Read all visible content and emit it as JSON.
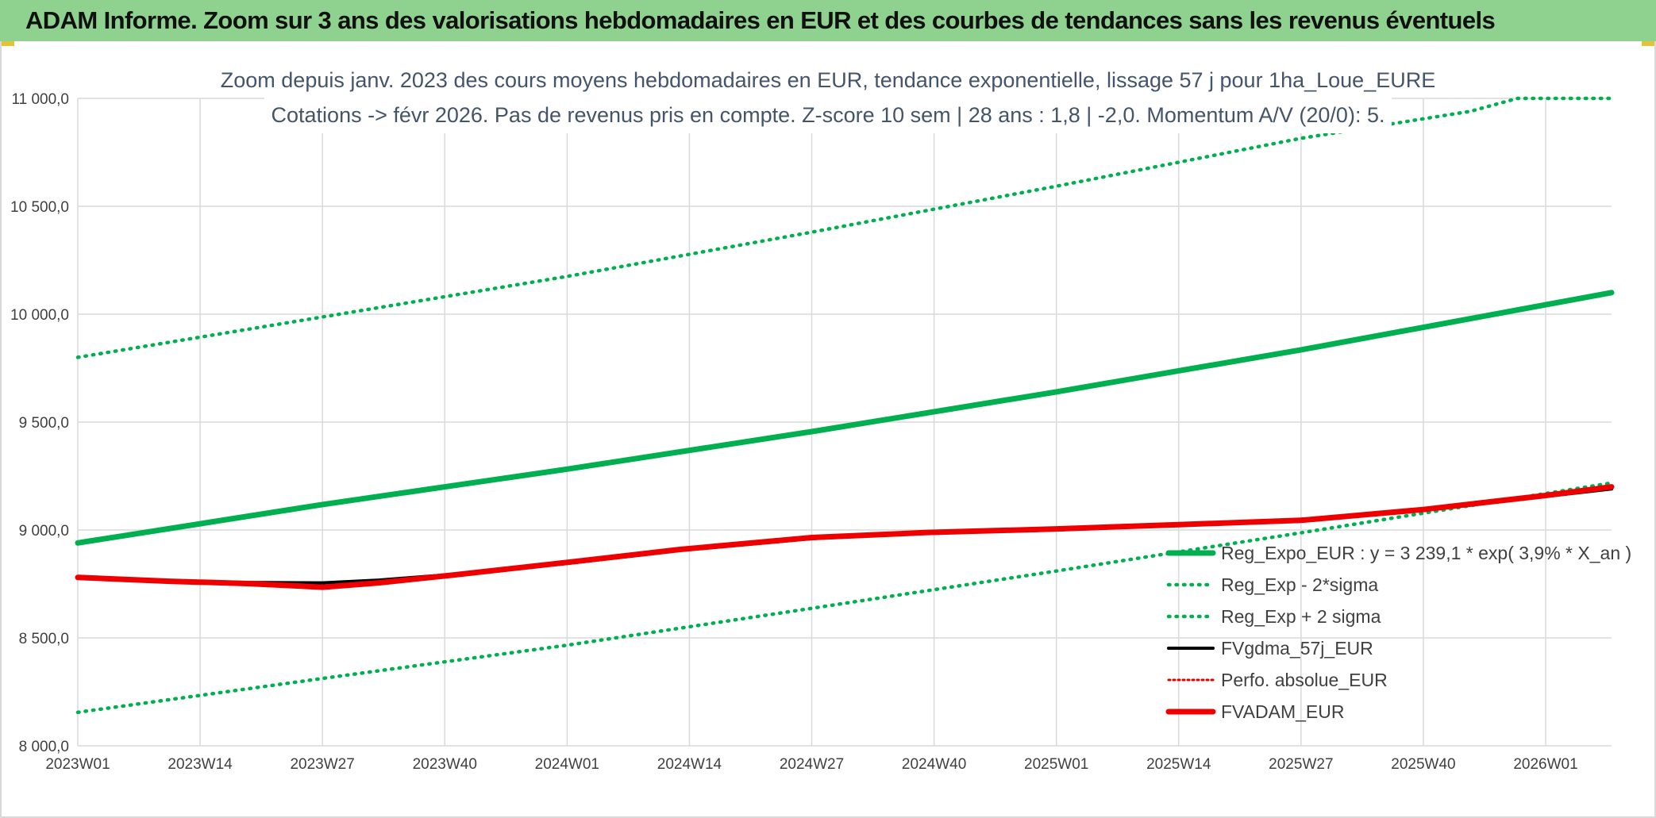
{
  "header": {
    "banner_title": "ADAM Informe. Zoom sur 3 ans des valorisations hebdomadaires en EUR et des courbes de tendances sans les revenus éventuels",
    "banner_color": "#8fd18f"
  },
  "chart_data": {
    "type": "line",
    "title_line1": "Zoom depuis janv. 2023 des cours moyens hebdomadaires en EUR, tendance exponentielle, lissage 57 j pour 1ha_Loue_EURE",
    "title_line2": "Cotations -> févr 2026. Pas de revenus pris en compte. Z-score 10 sem | 28 ans : 1,8 | -2,0. Momentum A/V (20/0): 5.",
    "categories": [
      "2023W01",
      "2023W14",
      "2023W27",
      "2023W40",
      "2024W01",
      "2024W14",
      "2024W27",
      "2024W40",
      "2025W01",
      "2025W14",
      "2025W27",
      "2025W40",
      "2026W01"
    ],
    "x_range_weeks": [
      0,
      163
    ],
    "category_step_weeks": 13,
    "ylim": [
      8000,
      11000
    ],
    "yticks": [
      8000,
      8500,
      9000,
      9500,
      10000,
      10500,
      11000
    ],
    "ytick_labels": [
      "8 000,0",
      "8 500,0",
      "9 000,0",
      "9 500,0",
      "10 000,0",
      "10 500,0",
      "11 000,0"
    ],
    "grid": true,
    "legend_position": "lower-right",
    "series": [
      {
        "name": "Reg_Expo_EUR : y = 3 239,1 * exp( 3,9% *  X_an )",
        "color": "#00b050",
        "style": "solid-thick",
        "points": [
          [
            0,
            8940
          ],
          [
            26,
            9118
          ],
          [
            52,
            9282
          ],
          [
            78,
            9456
          ],
          [
            104,
            9640
          ],
          [
            130,
            9835
          ],
          [
            163,
            10100
          ]
        ]
      },
      {
        "name": "Reg_Exp - 2*sigma",
        "color": "#00b050",
        "style": "dotted",
        "points": [
          [
            0,
            8155
          ],
          [
            26,
            8312
          ],
          [
            52,
            8466
          ],
          [
            78,
            8637
          ],
          [
            104,
            8810
          ],
          [
            130,
            8987
          ],
          [
            163,
            9218
          ]
        ]
      },
      {
        "name": "Reg_Exp + 2 sigma",
        "color": "#00b050",
        "style": "dotted",
        "points": [
          [
            0,
            9800
          ],
          [
            26,
            9987
          ],
          [
            52,
            10175
          ],
          [
            78,
            10380
          ],
          [
            104,
            10593
          ],
          [
            130,
            10815
          ],
          [
            148,
            10940
          ],
          [
            153,
            11000
          ],
          [
            163,
            11000
          ]
        ]
      },
      {
        "name": "FVgdma_57j_EUR",
        "color": "#000000",
        "style": "solid",
        "points": [
          [
            0,
            8780
          ],
          [
            10,
            8765
          ],
          [
            18,
            8757
          ],
          [
            26,
            8755
          ],
          [
            32,
            8768
          ],
          [
            40,
            8795
          ],
          [
            52,
            8845
          ],
          [
            64,
            8905
          ],
          [
            78,
            8960
          ],
          [
            90,
            8985
          ],
          [
            104,
            9000
          ],
          [
            117,
            9022
          ],
          [
            130,
            9050
          ],
          [
            143,
            9095
          ],
          [
            156,
            9155
          ],
          [
            163,
            9190
          ]
        ]
      },
      {
        "name": "Perfo. absolue_EUR",
        "color": "#e00000",
        "style": "dotted-thin",
        "points": []
      },
      {
        "name": "FVADAM_EUR",
        "color": "#ee0000",
        "style": "solid-thick",
        "points": [
          [
            0,
            8780
          ],
          [
            10,
            8762
          ],
          [
            18,
            8752
          ],
          [
            26,
            8735
          ],
          [
            32,
            8755
          ],
          [
            40,
            8792
          ],
          [
            52,
            8850
          ],
          [
            64,
            8910
          ],
          [
            78,
            8965
          ],
          [
            90,
            8988
          ],
          [
            104,
            9005
          ],
          [
            117,
            9025
          ],
          [
            130,
            9045
          ],
          [
            143,
            9095
          ],
          [
            156,
            9160
          ],
          [
            163,
            9200
          ]
        ]
      }
    ]
  }
}
